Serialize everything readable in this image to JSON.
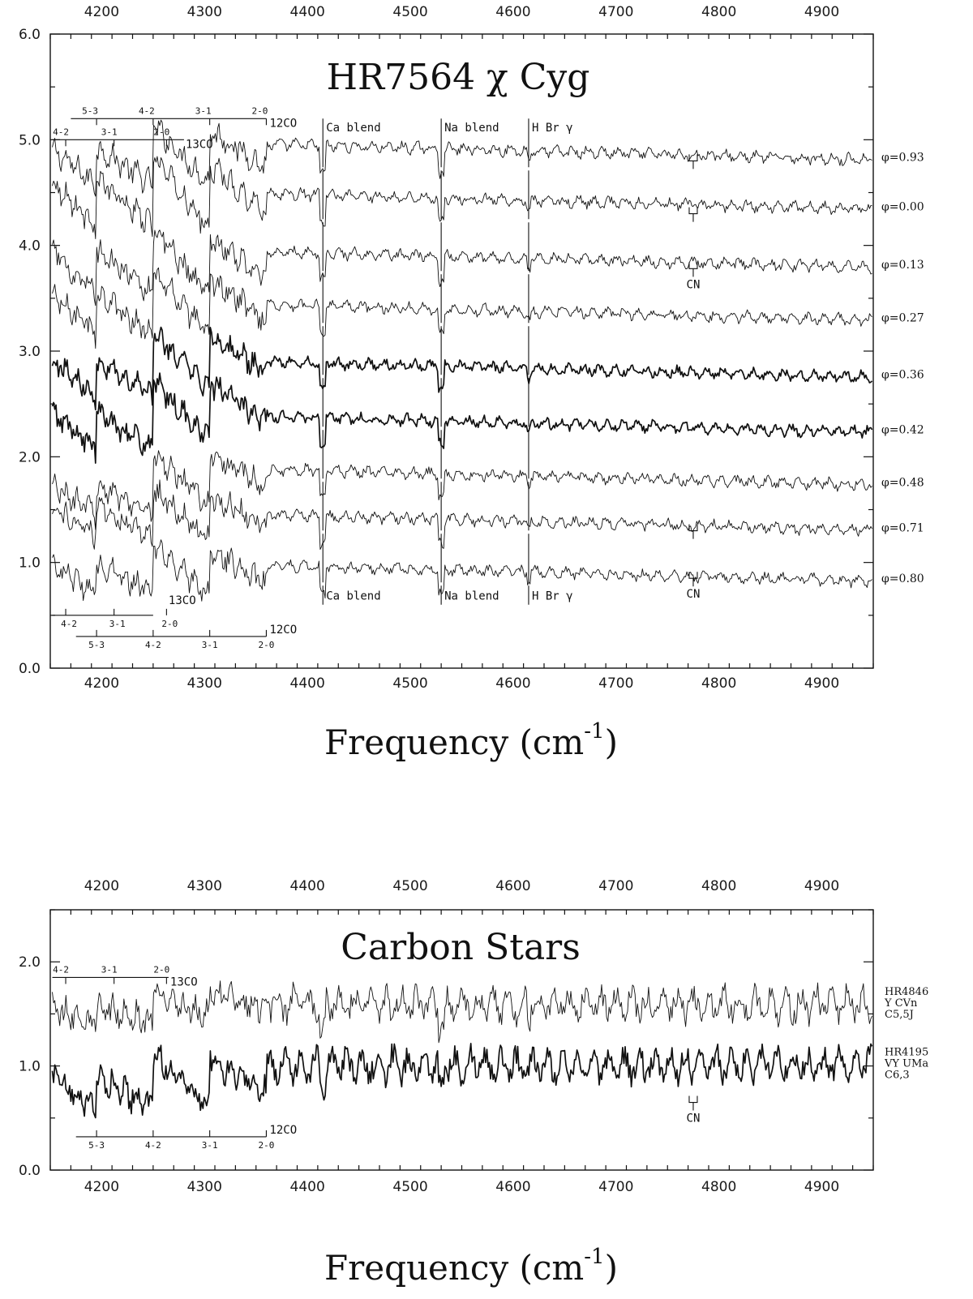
{
  "chart_data": [
    {
      "type": "line",
      "title": "HR7564 χ Cyg",
      "xlabel": "Frequency (cm",
      "xlabel_superscript": "-1",
      "xlabel_close": ")",
      "ylabel": "",
      "xlim": [
        4150,
        4950
      ],
      "ylim": [
        0,
        6
      ],
      "x_ticks": [
        4200,
        4300,
        4400,
        4500,
        4600,
        4700,
        4800,
        4900
      ],
      "y_ticks": [
        "0.0",
        "1.0",
        "2.0",
        "3.0",
        "4.0",
        "5.0",
        "6.0"
      ],
      "grid": false,
      "series": [
        {
          "name": "φ=0.93",
          "level": 4.85,
          "head_offset": -0.1,
          "jump_shift": 0.18,
          "drop": 0.35,
          "heavy": false
        },
        {
          "name": "φ=0.00",
          "level": 4.4,
          "head_offset": 0.0,
          "jump_shift": 0.15,
          "drop": 0.45,
          "heavy": false
        },
        {
          "name": "φ=0.13",
          "level": 3.85,
          "head_offset": -0.1,
          "jump_shift": 0.15,
          "drop": 0.4,
          "heavy": false
        },
        {
          "name": "φ=0.27",
          "level": 3.35,
          "head_offset": 0.0,
          "jump_shift": 0.15,
          "drop": 0.4,
          "heavy": false
        },
        {
          "name": "φ=0.36",
          "level": 2.75,
          "head_offset": 0.0,
          "jump_shift": 0.25,
          "drop": 0.35,
          "heavy": true
        },
        {
          "name": "φ=0.42",
          "level": 2.2,
          "head_offset": 0.05,
          "jump_shift": 0.3,
          "drop": 0.35,
          "heavy": true
        },
        {
          "name": "φ=0.48",
          "level": 1.7,
          "head_offset": -0.1,
          "jump_shift": 0.3,
          "drop": 0.3,
          "heavy": false
        },
        {
          "name": "φ=0.71",
          "level": 1.38,
          "head_offset": 0.0,
          "jump_shift": 0.12,
          "drop": 0.3,
          "heavy": false
        },
        {
          "name": "φ=0.80",
          "level": 0.9,
          "head_offset": -0.05,
          "jump_shift": 0.12,
          "drop": 0.3,
          "heavy": false
        }
      ],
      "line_ids": [
        {
          "label": "Ca blend",
          "x": 4415
        },
        {
          "label": "Na blend",
          "x": 4530
        },
        {
          "label": "H Br γ",
          "x": 4615
        }
      ],
      "cn_label": "CN",
      "cn_x": 4775,
      "co_bands_top": {
        "co12": {
          "label": "12CO",
          "heads": [
            {
              "label": "5-3",
              "x": 4195
            },
            {
              "label": "4-2",
              "x": 4250
            },
            {
              "label": "3-1",
              "x": 4305
            },
            {
              "label": "2-0",
              "x": 4360
            }
          ]
        },
        "co13": {
          "label": "13CO",
          "heads": [
            {
              "label": "4-2",
              "x": 4165
            },
            {
              "label": "3-1",
              "x": 4212
            },
            {
              "label": "2-0",
              "x": 4263
            }
          ]
        }
      }
    },
    {
      "type": "line",
      "title": "Carbon Stars",
      "xlabel": "Frequency (cm",
      "xlabel_superscript": "-1",
      "xlabel_close": ")",
      "ylabel": "",
      "xlim": [
        4150,
        4950
      ],
      "ylim": [
        0,
        2.5
      ],
      "x_ticks": [
        4200,
        4300,
        4400,
        4500,
        4600,
        4700,
        4800,
        4900
      ],
      "y_ticks": [
        "0.0",
        "1.0",
        "2.0"
      ],
      "grid": false,
      "series": [
        {
          "name": "HR4846 Y CVn C5,5J",
          "label_lines": [
            "HR4846",
            "Y CVn",
            "C5,5J"
          ],
          "level": 1.5,
          "head_offset": 0.0,
          "jump_shift": 0.15,
          "drop": 0.15,
          "heavy": false
        },
        {
          "name": "HR4195 VY UMa C6,3",
          "label_lines": [
            "HR4195",
            "VY UMa",
            "C6,3"
          ],
          "level": 0.9,
          "head_offset": -0.15,
          "jump_shift": 0.18,
          "drop": 0.3,
          "heavy": true
        }
      ],
      "cn_label": "CN",
      "cn_x": 4775,
      "co_bands": {
        "co13": {
          "label": "13CO",
          "heads": [
            {
              "label": "4-2",
              "x": 4165
            },
            {
              "label": "3-1",
              "x": 4212
            },
            {
              "label": "2-0",
              "x": 4263
            }
          ]
        },
        "co12": {
          "label": "12CO",
          "heads": [
            {
              "label": "5-3",
              "x": 4195
            },
            {
              "label": "4-2",
              "x": 4250
            },
            {
              "label": "3-1",
              "x": 4305
            },
            {
              "label": "2-0",
              "x": 4360
            }
          ]
        }
      }
    }
  ]
}
